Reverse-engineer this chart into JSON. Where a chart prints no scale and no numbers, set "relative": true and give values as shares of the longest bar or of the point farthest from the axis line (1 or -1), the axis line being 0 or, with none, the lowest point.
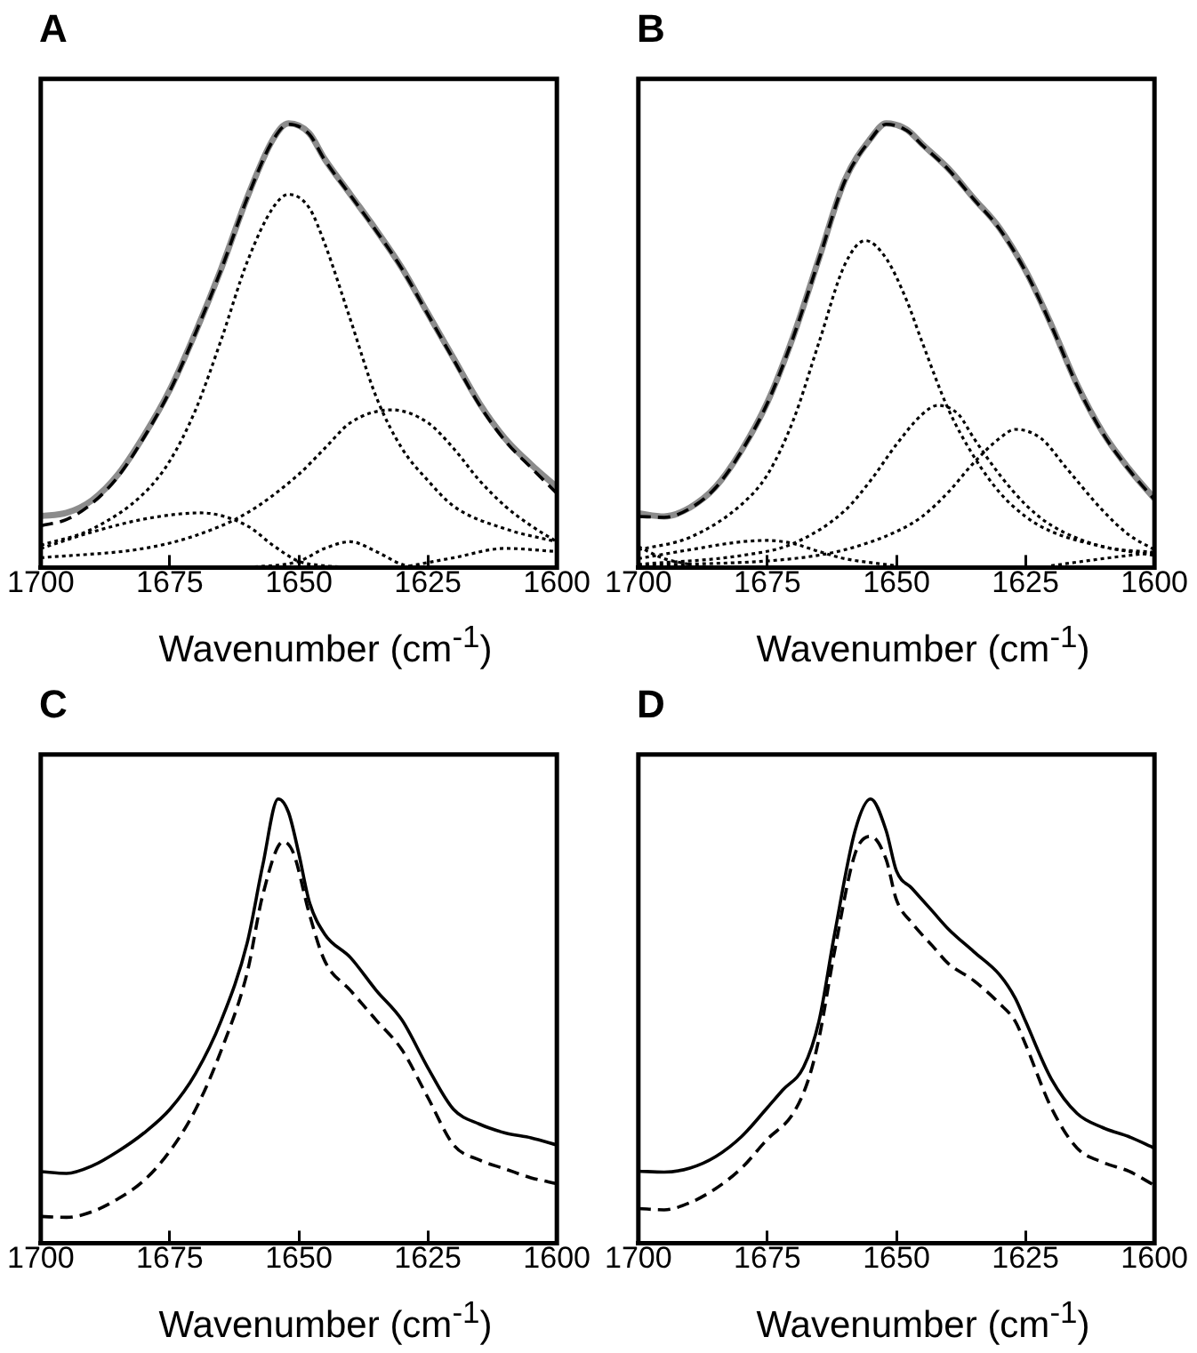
{
  "chart_data": [
    {
      "type": "line",
      "title": "A",
      "xlabel": "Wavenumber (cm$^{-1}$)",
      "relative": true,
      "xlim": [
        1700,
        1600
      ],
      "xticks": [
        1700,
        1675,
        1650,
        1625,
        1600
      ],
      "grid": false,
      "legend": false,
      "marker": "none",
      "tick_labels": "x",
      "series": [
        {
          "color": "#8c8c8c",
          "line_style": "solid",
          "x": [
            1700,
            1695,
            1690,
            1685,
            1680,
            1675,
            1670,
            1665,
            1660,
            1655,
            1652,
            1648,
            1645,
            1640,
            1635,
            1630,
            1625,
            1620,
            1615,
            1610,
            1605,
            1600
          ],
          "values": [
            0.116,
            0.123,
            0.152,
            0.21,
            0.297,
            0.4,
            0.53,
            0.674,
            0.833,
            0.964,
            1.0,
            0.978,
            0.92,
            0.84,
            0.76,
            0.674,
            0.572,
            0.471,
            0.37,
            0.29,
            0.232,
            0.181
          ]
        },
        {
          "color": "#000000",
          "line_style": "dashed",
          "x": [
            1700,
            1695,
            1690,
            1685,
            1680,
            1675,
            1670,
            1665,
            1660,
            1655,
            1652,
            1648,
            1645,
            1640,
            1635,
            1630,
            1625,
            1620,
            1615,
            1610,
            1605,
            1600
          ],
          "values": [
            0.094,
            0.108,
            0.145,
            0.205,
            0.293,
            0.397,
            0.528,
            0.672,
            0.831,
            0.962,
            0.998,
            0.976,
            0.918,
            0.838,
            0.758,
            0.672,
            0.57,
            0.468,
            0.366,
            0.285,
            0.225,
            0.167
          ]
        },
        {
          "color": "#000000",
          "line_style": "dotted",
          "x": [
            1700,
            1690,
            1680,
            1675,
            1670,
            1665,
            1660,
            1655,
            1652,
            1648,
            1645,
            1640,
            1635,
            1630,
            1625,
            1620,
            1610,
            1600
          ],
          "values": [
            0.05,
            0.087,
            0.167,
            0.24,
            0.355,
            0.514,
            0.688,
            0.81,
            0.84,
            0.81,
            0.73,
            0.558,
            0.384,
            0.268,
            0.196,
            0.138,
            0.087,
            0.058
          ]
        },
        {
          "color": "#000000",
          "line_style": "dotted",
          "x": [
            1700,
            1680,
            1670,
            1660,
            1650,
            1645,
            1640,
            1632,
            1625,
            1620,
            1615,
            1610,
            1605,
            1600
          ],
          "values": [
            0.022,
            0.043,
            0.072,
            0.123,
            0.21,
            0.268,
            0.326,
            0.355,
            0.326,
            0.268,
            0.196,
            0.138,
            0.094,
            0.058
          ]
        },
        {
          "color": "#000000",
          "line_style": "dotted",
          "x": [
            1700,
            1690,
            1680,
            1669,
            1660,
            1655,
            1650,
            1645,
            1640
          ],
          "values": [
            0.043,
            0.08,
            0.109,
            0.123,
            0.094,
            0.05,
            0.014,
            0.004,
            0
          ]
        },
        {
          "color": "#000000",
          "line_style": "dotted",
          "x": [
            1660,
            1650,
            1645,
            1640,
            1635,
            1630,
            1625
          ],
          "values": [
            0,
            0.014,
            0.043,
            0.058,
            0.036,
            0.007,
            0
          ]
        },
        {
          "color": "#000000",
          "line_style": "dotted",
          "x": [
            1630,
            1620,
            1610,
            1600
          ],
          "values": [
            0,
            0.022,
            0.043,
            0.036
          ]
        }
      ]
    },
    {
      "type": "line",
      "title": "B",
      "xlabel": "Wavenumber (cm$^{-1}$)",
      "relative": true,
      "xlim": [
        1700,
        1600
      ],
      "xticks": [
        1700,
        1675,
        1650,
        1625,
        1600
      ],
      "grid": false,
      "legend": false,
      "marker": "none",
      "tick_labels": "x",
      "series": [
        {
          "color": "#8c8c8c",
          "line_style": "solid",
          "x": [
            1700,
            1695,
            1690,
            1685,
            1680,
            1675,
            1670,
            1665,
            1660,
            1655,
            1652,
            1648,
            1645,
            1640,
            1635,
            1630,
            1625,
            1620,
            1615,
            1610,
            1605,
            1600
          ],
          "values": [
            0.122,
            0.115,
            0.135,
            0.182,
            0.264,
            0.372,
            0.52,
            0.696,
            0.872,
            0.966,
            1.0,
            0.986,
            0.953,
            0.899,
            0.831,
            0.764,
            0.669,
            0.547,
            0.412,
            0.304,
            0.223,
            0.155
          ]
        },
        {
          "color": "#000000",
          "line_style": "dashed",
          "x": [
            1700,
            1695,
            1690,
            1685,
            1680,
            1675,
            1670,
            1665,
            1660,
            1655,
            1652,
            1648,
            1645,
            1640,
            1635,
            1630,
            1625,
            1620,
            1615,
            1610,
            1605,
            1600
          ],
          "values": [
            0.115,
            0.113,
            0.133,
            0.18,
            0.262,
            0.37,
            0.518,
            0.694,
            0.87,
            0.964,
            0.998,
            0.984,
            0.951,
            0.897,
            0.829,
            0.762,
            0.667,
            0.545,
            0.41,
            0.302,
            0.221,
            0.153
          ]
        },
        {
          "color": "#000000",
          "line_style": "dotted",
          "x": [
            1700,
            1690,
            1680,
            1675,
            1670,
            1665,
            1660,
            1656,
            1652,
            1648,
            1645,
            1640,
            1635,
            1630,
            1625,
            1620,
            1610,
            1600
          ],
          "values": [
            0.04,
            0.068,
            0.142,
            0.209,
            0.331,
            0.507,
            0.682,
            0.736,
            0.696,
            0.601,
            0.507,
            0.358,
            0.25,
            0.169,
            0.115,
            0.081,
            0.047,
            0.027
          ]
        },
        {
          "color": "#000000",
          "line_style": "dotted",
          "x": [
            1700,
            1680,
            1670,
            1660,
            1655,
            1650,
            1645,
            1642,
            1638,
            1635,
            1630,
            1625,
            1620,
            1610,
            1600
          ],
          "values": [
            0.007,
            0.027,
            0.054,
            0.128,
            0.196,
            0.277,
            0.345,
            0.365,
            0.345,
            0.291,
            0.209,
            0.142,
            0.095,
            0.047,
            0.034
          ]
        },
        {
          "color": "#000000",
          "line_style": "dotted",
          "x": [
            1700,
            1670,
            1660,
            1650,
            1645,
            1640,
            1635,
            1630,
            1627,
            1622,
            1617,
            1610,
            1605,
            1600
          ],
          "values": [
            0.004,
            0.02,
            0.04,
            0.081,
            0.115,
            0.169,
            0.236,
            0.291,
            0.311,
            0.291,
            0.223,
            0.128,
            0.074,
            0.04
          ]
        },
        {
          "color": "#000000",
          "line_style": "dotted",
          "x": [
            1700,
            1690,
            1680,
            1675,
            1670,
            1665,
            1660,
            1650
          ],
          "values": [
            0.02,
            0.04,
            0.058,
            0.061,
            0.054,
            0.036,
            0.02,
            0.004
          ]
        },
        {
          "color": "#000000",
          "line_style": "dotted",
          "x": [
            1700,
            1695,
            1690
          ],
          "values": [
            0.047,
            0.02,
            0.007
          ]
        },
        {
          "color": "#000000",
          "line_style": "dotted",
          "x": [
            1620,
            1610,
            1600
          ],
          "values": [
            0.004,
            0.02,
            0.034
          ]
        }
      ]
    },
    {
      "type": "line",
      "title": "C",
      "xlabel": "Wavenumber (cm$^{-1}$)",
      "relative": true,
      "xlim": [
        1700,
        1600
      ],
      "xticks": [
        1700,
        1675,
        1650,
        1625,
        1600
      ],
      "grid": false,
      "legend": false,
      "marker": "none",
      "tick_labels": "x",
      "series": [
        {
          "color": "#000000",
          "line_style": "solid",
          "x": [
            1700,
            1695,
            1690,
            1685,
            1680,
            1675,
            1670,
            1665,
            1660,
            1657,
            1654,
            1652,
            1650,
            1648,
            1645,
            1640,
            1635,
            1630,
            1625,
            1620,
            1615,
            1610,
            1605,
            1600
          ],
          "values": [
            0.161,
            0.157,
            0.174,
            0.207,
            0.248,
            0.301,
            0.382,
            0.502,
            0.676,
            0.85,
            1.0,
            0.97,
            0.877,
            0.77,
            0.696,
            0.643,
            0.569,
            0.502,
            0.395,
            0.301,
            0.268,
            0.248,
            0.237,
            0.221
          ]
        },
        {
          "color": "#000000",
          "line_style": "dashed",
          "x": [
            1700,
            1695,
            1690,
            1685,
            1680,
            1675,
            1670,
            1665,
            1660,
            1657,
            1653,
            1651,
            1648,
            1645,
            1640,
            1635,
            1630,
            1625,
            1620,
            1615,
            1610,
            1605,
            1600
          ],
          "values": [
            0.06,
            0.058,
            0.071,
            0.1,
            0.141,
            0.207,
            0.301,
            0.435,
            0.609,
            0.783,
            0.904,
            0.877,
            0.743,
            0.636,
            0.569,
            0.502,
            0.435,
            0.328,
            0.221,
            0.187,
            0.167,
            0.147,
            0.134
          ]
        }
      ]
    },
    {
      "type": "line",
      "title": "D",
      "xlabel": "Wavenumber (cm$^{-1}$)",
      "relative": true,
      "xlim": [
        1700,
        1600
      ],
      "xticks": [
        1700,
        1675,
        1650,
        1625,
        1600
      ],
      "grid": false,
      "legend": false,
      "marker": "none",
      "tick_labels": "x",
      "series": [
        {
          "color": "#000000",
          "line_style": "solid",
          "x": [
            1700,
            1695,
            1690,
            1685,
            1680,
            1675,
            1672,
            1668,
            1665,
            1662,
            1658,
            1655,
            1652,
            1650,
            1647,
            1643,
            1640,
            1635,
            1630,
            1627,
            1625,
            1620,
            1615,
            1610,
            1605,
            1600
          ],
          "values": [
            0.162,
            0.16,
            0.169,
            0.195,
            0.24,
            0.305,
            0.345,
            0.396,
            0.5,
            0.695,
            0.929,
            1.0,
            0.929,
            0.838,
            0.799,
            0.747,
            0.708,
            0.656,
            0.604,
            0.552,
            0.5,
            0.37,
            0.292,
            0.26,
            0.24,
            0.214
          ]
        },
        {
          "color": "#000000",
          "line_style": "dashed",
          "x": [
            1700,
            1695,
            1690,
            1685,
            1680,
            1675,
            1670,
            1667,
            1665,
            1662,
            1658,
            1655,
            1652,
            1650,
            1647,
            1643,
            1640,
            1635,
            1630,
            1627,
            1625,
            1620,
            1615,
            1610,
            1605,
            1600
          ],
          "values": [
            0.078,
            0.075,
            0.091,
            0.123,
            0.169,
            0.234,
            0.292,
            0.37,
            0.461,
            0.656,
            0.877,
            0.916,
            0.864,
            0.773,
            0.721,
            0.669,
            0.63,
            0.591,
            0.539,
            0.5,
            0.448,
            0.305,
            0.214,
            0.182,
            0.162,
            0.13
          ]
        }
      ]
    }
  ]
}
